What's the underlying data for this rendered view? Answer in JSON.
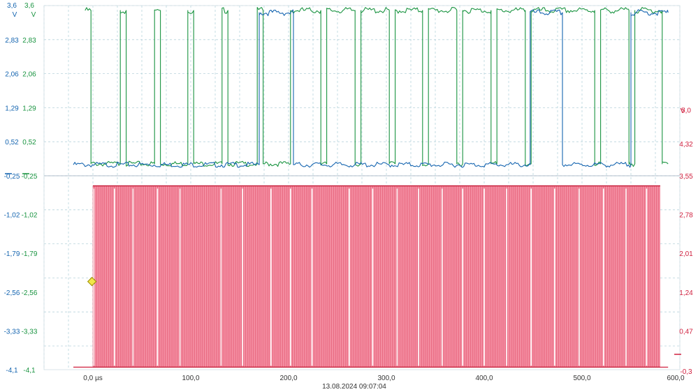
{
  "chart_data": [
    {
      "type": "line",
      "panel": "upper",
      "xlim": [
        -50,
        600
      ],
      "x_unit": "µs",
      "x_ticks": [
        "0,0 µs",
        "100,0",
        "200,0",
        "300,0",
        "400,0",
        "500,0",
        "600,0"
      ],
      "timestamp": "13.08.2024 09:07:04",
      "left_axes": [
        {
          "unit": "V",
          "color": "#1565b0",
          "ticks": [
            "3,6",
            "2,83",
            "2,06",
            "1,29",
            "0,52",
            "-0,25"
          ],
          "ylim": [
            -0.25,
            3.6
          ]
        },
        {
          "unit": "V",
          "color": "#1a9441",
          "ticks": [
            "3,6",
            "2,83",
            "2,06",
            "1,29",
            "0,52",
            "-0,25"
          ],
          "ylim": [
            -0.25,
            3.6
          ]
        }
      ],
      "right_axis": {
        "unit": "V",
        "color": "#d0213f",
        "ticks": [
          "5,0",
          "4,32"
        ]
      },
      "series": [
        {
          "color": "#1a9441",
          "low": 0.02,
          "high": 3.49,
          "transitions": [
            -2,
            28,
            34,
            63,
            69,
            97,
            103,
            132,
            138,
            168,
            174,
            202,
            233,
            239,
            268,
            274,
            303,
            309,
            337,
            343,
            372,
            378,
            407,
            413,
            442,
            448,
            513,
            519,
            548,
            554,
            582
          ],
          "start_level": "high",
          "end_x": 588
        },
        {
          "color": "#1565b0",
          "low": 0.0,
          "high": 3.44,
          "transitions": [
            170,
            205,
            447,
            480,
            550
          ],
          "start_level": "low",
          "end_x": 588
        }
      ]
    },
    {
      "type": "line",
      "panel": "lower",
      "xlim": [
        -50,
        600
      ],
      "left_axes": [
        {
          "color": "#1565b0",
          "ticks": [
            "-0,25",
            "-1,02",
            "-1,79",
            "-2,56",
            "-3,33",
            "-4,1"
          ]
        },
        {
          "color": "#1a9441",
          "ticks": [
            "-0,25",
            "-1,02",
            "-1,79",
            "-2,56",
            "-3,33",
            "-4,1"
          ]
        }
      ],
      "right_axis": {
        "unit": "V",
        "color": "#d0213f",
        "ticks": [
          "3,55",
          "2,78",
          "2,01",
          "1,24",
          "0,47",
          "-0,3"
        ],
        "ylim": [
          -0.3,
          3.55
        ]
      },
      "series": [
        {
          "color": "#d0213f",
          "low": -0.25,
          "high": 3.35,
          "pulse_period_us": 2.0,
          "pulse_start": 0,
          "pulse_end": 580,
          "trace_start": -20,
          "trace_end": 588
        }
      ],
      "trigger_marker": {
        "x": -1,
        "y": 1.45,
        "color": "#f2e64a"
      }
    }
  ]
}
